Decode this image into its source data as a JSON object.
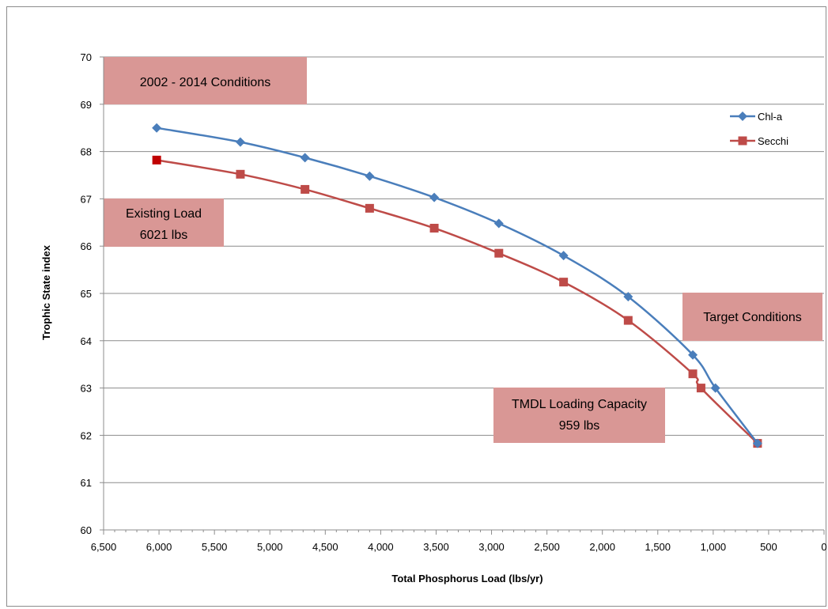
{
  "chart_data": {
    "type": "line",
    "xlabel": "Total Phosphorus  Load (lbs/yr)",
    "ylabel": "Trophic State index",
    "xlim": [
      6500,
      0
    ],
    "ylim": [
      60,
      70
    ],
    "x_reversed": true,
    "x_ticks": [
      6500,
      6000,
      5500,
      5000,
      4500,
      4000,
      3500,
      3000,
      2500,
      2000,
      1500,
      1000,
      500,
      0
    ],
    "x_tick_labels": [
      "6,500",
      "6,000",
      "5,500",
      "5,000",
      "4,500",
      "4,000",
      "3,500",
      "3,000",
      "2,500",
      "2,000",
      "1,500",
      "1,000",
      "500",
      "0"
    ],
    "y_ticks": [
      60,
      61,
      62,
      63,
      64,
      65,
      66,
      67,
      68,
      69,
      70
    ],
    "y_tick_labels": [
      "60",
      "61",
      "62",
      "63",
      "64",
      "65",
      "66",
      "67",
      "68",
      "69",
      "70"
    ],
    "grid": "horizontal",
    "legend_position": "top-right",
    "series": [
      {
        "name": "Chl-a",
        "color": "#4a7ebb",
        "marker": "diamond",
        "points": [
          [
            6021,
            68.5
          ],
          [
            5266,
            68.2
          ],
          [
            4683,
            67.87
          ],
          [
            4100,
            67.48
          ],
          [
            3517,
            67.03
          ],
          [
            2934,
            66.48
          ],
          [
            2350,
            65.8
          ],
          [
            1767,
            64.93
          ],
          [
            1184,
            63.7
          ],
          [
            980,
            63.0
          ],
          [
            600,
            61.83
          ]
        ]
      },
      {
        "name": "Secchi",
        "color": "#be4b48",
        "marker": "square",
        "points": [
          [
            6021,
            67.82
          ],
          [
            5266,
            67.52
          ],
          [
            4683,
            67.2
          ],
          [
            4100,
            66.8
          ],
          [
            3517,
            66.38
          ],
          [
            2934,
            65.85
          ],
          [
            2350,
            65.24
          ],
          [
            1767,
            64.43
          ],
          [
            1184,
            63.3
          ],
          [
            1110,
            63.0
          ],
          [
            600,
            61.83
          ]
        ]
      }
    ],
    "annotations": [
      {
        "id": "conditions",
        "lines": [
          "2002 - 2014 Conditions"
        ]
      },
      {
        "id": "existing",
        "lines": [
          "Existing Load",
          "6021 lbs"
        ]
      },
      {
        "id": "target",
        "lines": [
          "Target Conditions"
        ]
      },
      {
        "id": "tmdl",
        "lines": [
          "TMDL Loading Capacity",
          "959 lbs"
        ]
      }
    ],
    "annotation_fill": "#d99795",
    "highlight_marker_color": "#c00000"
  }
}
